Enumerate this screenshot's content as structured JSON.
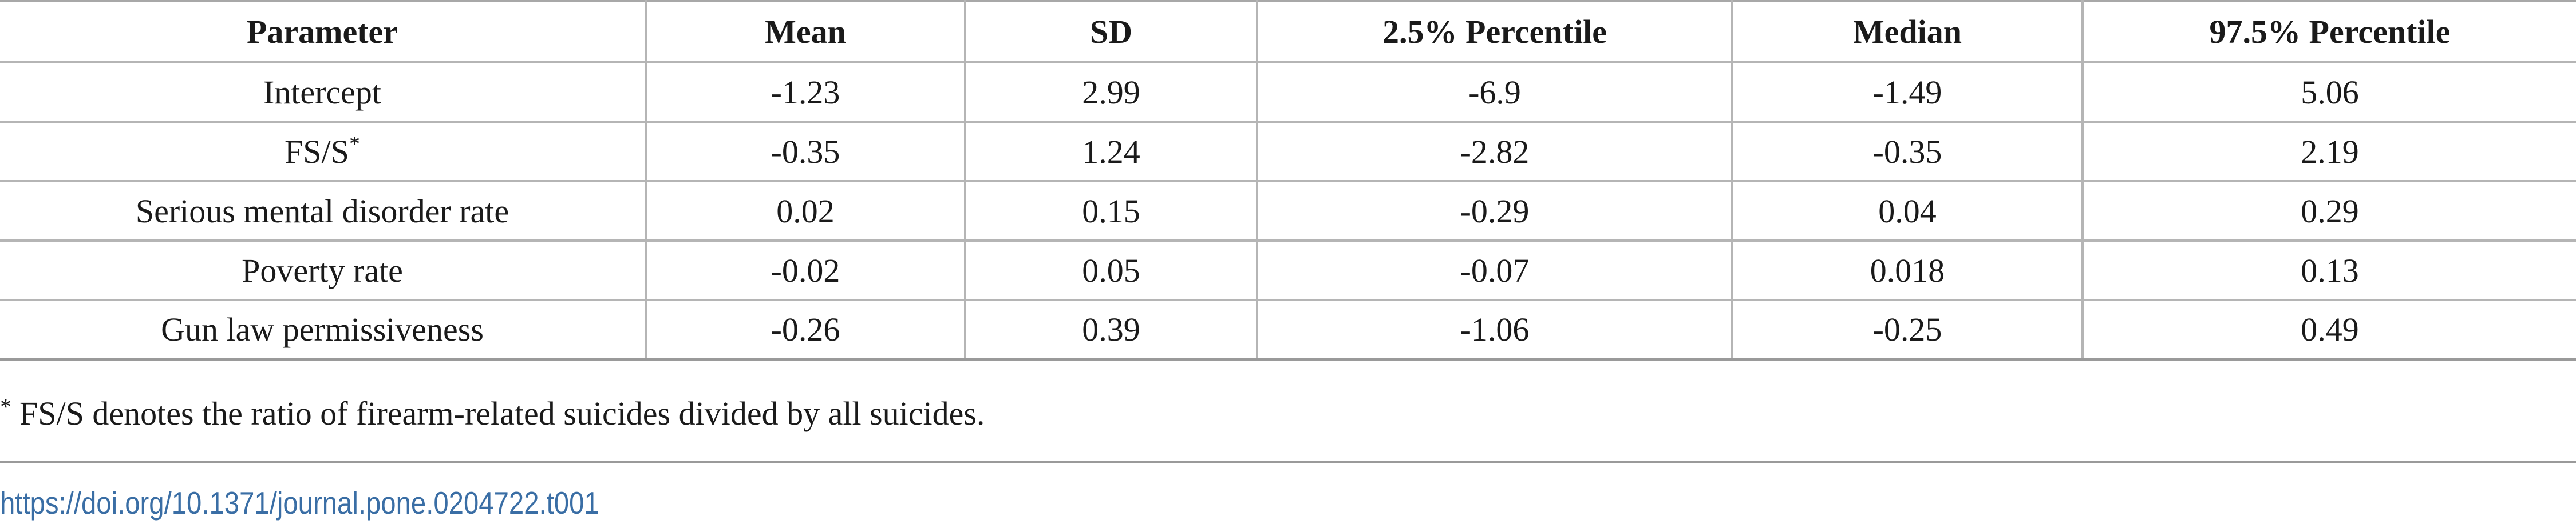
{
  "table": {
    "headers": [
      "Parameter",
      "Mean",
      "SD",
      "2.5% Percentile",
      "Median",
      "97.5% Percentile"
    ],
    "rows": [
      {
        "parameter": "Intercept",
        "marker": "",
        "mean": "-1.23",
        "sd": "2.99",
        "p2_5": "-6.9",
        "median": "-1.49",
        "p97_5": "5.06"
      },
      {
        "parameter": "FS/S",
        "marker": "*",
        "mean": "-0.35",
        "sd": "1.24",
        "p2_5": "-2.82",
        "median": "-0.35",
        "p97_5": "2.19"
      },
      {
        "parameter": "Serious mental disorder rate",
        "marker": "",
        "mean": "0.02",
        "sd": "0.15",
        "p2_5": "-0.29",
        "median": "0.04",
        "p97_5": "0.29"
      },
      {
        "parameter": "Poverty rate",
        "marker": "",
        "mean": "-0.02",
        "sd": "0.05",
        "p2_5": "-0.07",
        "median": "0.018",
        "p97_5": "0.13"
      },
      {
        "parameter": "Gun law permissiveness",
        "marker": "",
        "mean": "-0.26",
        "sd": "0.39",
        "p2_5": "-1.06",
        "median": "-0.25",
        "p97_5": "0.49"
      }
    ]
  },
  "footnote": {
    "marker": "*",
    "text": "FS/S denotes the ratio of firearm-related suicides divided by all suicides."
  },
  "doi": {
    "text": "https://doi.org/10.1371/journal.pone.0204722.t001",
    "color": "#3a6ea5"
  }
}
